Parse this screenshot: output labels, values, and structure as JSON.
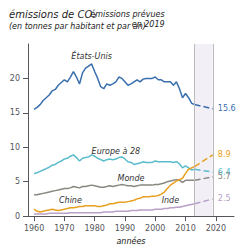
{
  "chart_data": {
    "type": "line",
    "title": "émissions de CO₂",
    "subtitle": "(en tonnes par habitant et par an)",
    "annotations": [
      "émissions prévues\nen 2019"
    ],
    "x_label": "années",
    "xlim": [
      1958,
      2026
    ],
    "ylim": [
      0,
      25
    ],
    "xticks": [
      1960,
      1970,
      1980,
      1990,
      2000,
      2010,
      2020
    ],
    "yticks": [
      0,
      5,
      10,
      15,
      20
    ],
    "grid": false,
    "vlines": [
      2013,
      2019
    ],
    "x": [
      1960,
      1961,
      1962,
      1963,
      1964,
      1965,
      1966,
      1967,
      1968,
      1969,
      1970,
      1971,
      1972,
      1973,
      1974,
      1975,
      1976,
      1977,
      1978,
      1979,
      1980,
      1981,
      1982,
      1983,
      1984,
      1985,
      1986,
      1987,
      1988,
      1989,
      1990,
      1991,
      1992,
      1993,
      1994,
      1995,
      1996,
      1997,
      1998,
      1999,
      2000,
      2001,
      2002,
      2003,
      2004,
      2005,
      2006,
      2007,
      2008,
      2009,
      2010,
      2011,
      2012,
      2013
    ],
    "series": [
      {
        "name": "États-Unis",
        "color": "#3a6fae",
        "values": [
          15.5,
          15.8,
          16.2,
          16.8,
          17.2,
          17.6,
          18.2,
          18.4,
          19.0,
          19.4,
          19.8,
          19.5,
          20.2,
          21.0,
          20.2,
          19.2,
          20.8,
          21.5,
          21.8,
          22.1,
          21.0,
          20.0,
          18.8,
          18.5,
          19.2,
          19.0,
          19.2,
          19.5,
          20.2,
          20.0,
          19.5,
          19.0,
          19.2,
          19.5,
          19.8,
          19.5,
          19.9,
          20.0,
          20.0,
          20.0,
          20.2,
          19.8,
          19.8,
          19.5,
          19.5,
          19.5,
          19.0,
          19.5,
          18.5,
          17.2,
          17.8,
          17.2,
          16.4,
          16.2
        ],
        "projection": 15.6
      },
      {
        "name": "Europe à 28",
        "color": "#5bbccc",
        "values": [
          6.2,
          6.3,
          6.5,
          6.7,
          6.9,
          7.1,
          7.4,
          7.5,
          7.8,
          8.0,
          8.3,
          8.4,
          8.7,
          8.9,
          8.5,
          8.0,
          8.4,
          8.5,
          8.6,
          8.9,
          8.7,
          8.4,
          8.2,
          8.0,
          8.2,
          8.3,
          8.2,
          8.3,
          8.5,
          8.6,
          8.3,
          7.9,
          7.8,
          7.5,
          7.6,
          7.7,
          7.9,
          7.8,
          7.8,
          7.8,
          8.0,
          7.9,
          7.9,
          7.9,
          7.9,
          7.9,
          7.8,
          7.9,
          7.6,
          7.0,
          7.3,
          7.0,
          6.7,
          6.8
        ],
        "projection": 6.4
      },
      {
        "name": "Monde",
        "color": "#888880",
        "values": [
          3.1,
          3.1,
          3.2,
          3.3,
          3.4,
          3.5,
          3.6,
          3.7,
          3.8,
          3.9,
          4.0,
          4.0,
          4.1,
          4.3,
          4.2,
          4.1,
          4.3,
          4.3,
          4.4,
          4.5,
          4.4,
          4.3,
          4.2,
          4.2,
          4.3,
          4.4,
          4.3,
          4.4,
          4.5,
          4.6,
          4.5,
          4.4,
          4.4,
          4.3,
          4.4,
          4.5,
          4.5,
          4.5,
          4.5,
          4.5,
          4.6,
          4.6,
          4.7,
          4.8,
          5.0,
          5.1,
          5.2,
          5.3,
          5.2,
          4.9,
          5.2,
          5.2,
          5.2,
          5.2
        ],
        "projection": 5.7
      },
      {
        "name": "Chine",
        "color": "#e8a020",
        "values": [
          1.0,
          0.7,
          0.6,
          0.7,
          0.8,
          0.9,
          1.0,
          0.9,
          0.8,
          0.9,
          1.0,
          1.1,
          1.2,
          1.2,
          1.3,
          1.4,
          1.4,
          1.5,
          1.5,
          1.5,
          1.5,
          1.4,
          1.4,
          1.5,
          1.6,
          1.8,
          1.8,
          1.9,
          2.0,
          2.0,
          2.0,
          2.1,
          2.2,
          2.3,
          2.5,
          2.6,
          2.8,
          2.8,
          2.8,
          2.9,
          2.9,
          3.0,
          3.2,
          3.5,
          4.0,
          4.5,
          4.8,
          5.1,
          5.3,
          5.5,
          6.2,
          6.8,
          7.0,
          7.2
        ],
        "projection": 8.9
      },
      {
        "name": "Inde",
        "color": "#b8a0c8",
        "values": [
          0.3,
          0.3,
          0.3,
          0.3,
          0.3,
          0.4,
          0.4,
          0.4,
          0.4,
          0.4,
          0.4,
          0.4,
          0.5,
          0.5,
          0.5,
          0.5,
          0.5,
          0.5,
          0.5,
          0.5,
          0.5,
          0.5,
          0.5,
          0.6,
          0.6,
          0.6,
          0.6,
          0.7,
          0.7,
          0.7,
          0.7,
          0.7,
          0.8,
          0.8,
          0.8,
          0.9,
          0.9,
          0.9,
          0.9,
          0.9,
          1.0,
          1.0,
          1.0,
          1.1,
          1.1,
          1.2,
          1.2,
          1.3,
          1.3,
          1.4,
          1.5,
          1.6,
          1.7,
          1.8
        ],
        "projection": 2.5
      }
    ]
  }
}
